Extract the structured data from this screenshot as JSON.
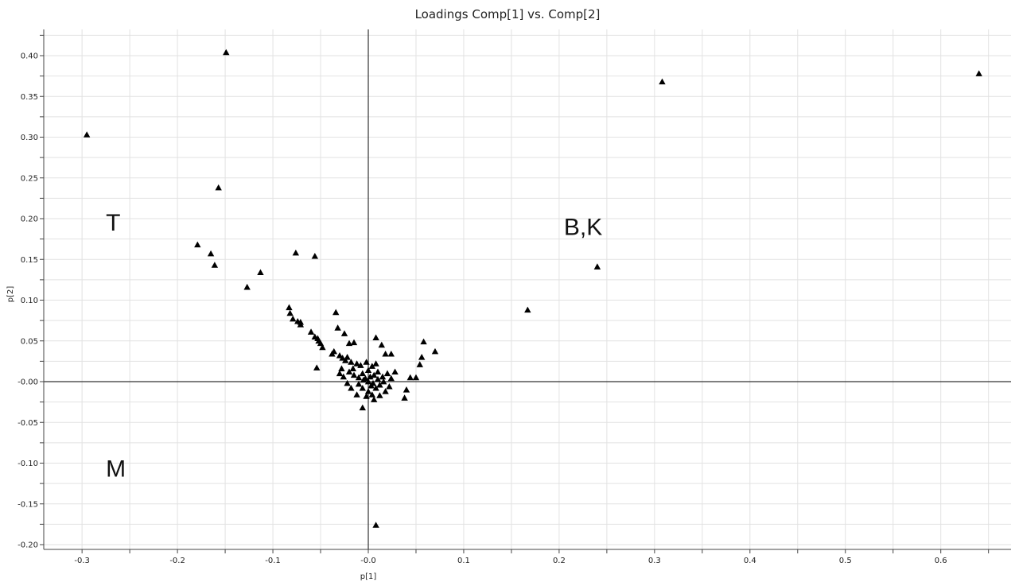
{
  "chart_data": {
    "type": "scatter",
    "title": "Loadings Comp[1] vs. Comp[2]",
    "xlabel": "p[1]",
    "ylabel": "p[2]",
    "xlim": [
      -0.34,
      0.68
    ],
    "ylim": [
      -0.205,
      0.425
    ],
    "grid": true,
    "marker": "triangle",
    "marker_color": "#000000",
    "x_ticks": [
      {
        "value": -0.3,
        "label": "-0.3"
      },
      {
        "value": -0.2,
        "label": "-0.2"
      },
      {
        "value": -0.1,
        "label": "-0.1"
      },
      {
        "value": 0.0,
        "label": "-0.0"
      },
      {
        "value": 0.1,
        "label": "0.1"
      },
      {
        "value": 0.2,
        "label": "0.2"
      },
      {
        "value": 0.3,
        "label": "0.3"
      },
      {
        "value": 0.4,
        "label": "0.4"
      },
      {
        "value": 0.5,
        "label": "0.5"
      },
      {
        "value": 0.6,
        "label": "0.6"
      }
    ],
    "y_ticks": [
      {
        "value": 0.4,
        "label": "0.40"
      },
      {
        "value": 0.35,
        "label": "0.35"
      },
      {
        "value": 0.3,
        "label": "0.30"
      },
      {
        "value": 0.25,
        "label": "0.25"
      },
      {
        "value": 0.2,
        "label": "0.20"
      },
      {
        "value": 0.15,
        "label": "0.15"
      },
      {
        "value": 0.1,
        "label": "0.10"
      },
      {
        "value": 0.05,
        "label": "0.05"
      },
      {
        "value": 0.0,
        "label": "-0.00"
      },
      {
        "value": -0.05,
        "label": "-0.05"
      },
      {
        "value": -0.1,
        "label": "-0.10"
      },
      {
        "value": -0.15,
        "label": "-0.15"
      },
      {
        "value": -0.2,
        "label": "-0.20"
      }
    ],
    "annotations": [
      {
        "text": "T",
        "x": -0.275,
        "y": 0.195
      },
      {
        "text": "B,K",
        "x": 0.205,
        "y": 0.19
      },
      {
        "text": "M",
        "x": -0.275,
        "y": -0.107
      }
    ],
    "points": [
      [
        -0.149,
        0.404
      ],
      [
        -0.295,
        0.303
      ],
      [
        0.308,
        0.368
      ],
      [
        0.64,
        0.378
      ],
      [
        -0.157,
        0.238
      ],
      [
        -0.179,
        0.168
      ],
      [
        -0.165,
        0.157
      ],
      [
        -0.161,
        0.143
      ],
      [
        -0.076,
        0.158
      ],
      [
        -0.056,
        0.154
      ],
      [
        -0.113,
        0.134
      ],
      [
        -0.127,
        0.116
      ],
      [
        0.24,
        0.141
      ],
      [
        0.167,
        0.088
      ],
      [
        -0.083,
        0.091
      ],
      [
        -0.082,
        0.084
      ],
      [
        -0.079,
        0.077
      ],
      [
        -0.074,
        0.074
      ],
      [
        -0.071,
        0.073
      ],
      [
        -0.071,
        0.07
      ],
      [
        -0.06,
        0.061
      ],
      [
        -0.056,
        0.055
      ],
      [
        -0.053,
        0.053
      ],
      [
        -0.052,
        0.05
      ],
      [
        -0.05,
        0.047
      ],
      [
        -0.048,
        0.042
      ],
      [
        -0.034,
        0.085
      ],
      [
        -0.032,
        0.066
      ],
      [
        -0.025,
        0.059
      ],
      [
        -0.02,
        0.047
      ],
      [
        -0.015,
        0.048
      ],
      [
        -0.036,
        0.037
      ],
      [
        -0.038,
        0.034
      ],
      [
        -0.03,
        0.032
      ],
      [
        -0.027,
        0.029
      ],
      [
        -0.024,
        0.026
      ],
      [
        -0.022,
        0.03
      ],
      [
        -0.054,
        0.017
      ],
      [
        -0.028,
        0.016
      ],
      [
        -0.018,
        0.024
      ],
      [
        -0.012,
        0.022
      ],
      [
        -0.008,
        0.02
      ],
      [
        -0.002,
        0.024
      ],
      [
        0.004,
        0.019
      ],
      [
        0.008,
        0.022
      ],
      [
        0.008,
        0.054
      ],
      [
        0.014,
        0.045
      ],
      [
        0.018,
        0.034
      ],
      [
        0.024,
        0.034
      ],
      [
        0.058,
        0.049
      ],
      [
        0.07,
        0.037
      ],
      [
        0.056,
        0.03
      ],
      [
        0.054,
        0.021
      ],
      [
        0.044,
        0.005
      ],
      [
        0.05,
        0.005
      ],
      [
        0.04,
        -0.01
      ],
      [
        0.038,
        -0.02
      ],
      [
        0.022,
        -0.006
      ],
      [
        0.018,
        -0.012
      ],
      [
        0.012,
        -0.017
      ],
      [
        0.006,
        -0.022
      ],
      [
        -0.006,
        -0.032
      ],
      [
        -0.012,
        -0.016
      ],
      [
        -0.018,
        -0.008
      ],
      [
        -0.022,
        -0.002
      ],
      [
        -0.026,
        0.006
      ],
      [
        -0.03,
        0.01
      ],
      [
        -0.02,
        0.012
      ],
      [
        -0.015,
        0.008
      ],
      [
        -0.01,
        0.005
      ],
      [
        -0.005,
        0.002
      ],
      [
        0.0,
        0.0
      ],
      [
        0.005,
        -0.002
      ],
      [
        0.01,
        0.003
      ],
      [
        0.015,
        0.006
      ],
      [
        0.02,
        0.01
      ],
      [
        0.01,
        0.012
      ],
      [
        0.0,
        0.014
      ],
      [
        -0.006,
        0.01
      ],
      [
        -0.01,
        -0.003
      ],
      [
        -0.006,
        -0.008
      ],
      [
        0.0,
        -0.012
      ],
      [
        0.004,
        -0.016
      ],
      [
        0.008,
        -0.008
      ],
      [
        0.012,
        -0.004
      ],
      [
        0.016,
        0.0
      ],
      [
        0.002,
        0.006
      ],
      [
        -0.003,
        0.004
      ],
      [
        0.003,
        -0.005
      ],
      [
        -0.002,
        -0.018
      ],
      [
        0.006,
        0.008
      ],
      [
        0.024,
        0.004
      ],
      [
        0.028,
        0.012
      ],
      [
        -0.016,
        0.016
      ],
      [
        0.008,
        -0.176
      ]
    ]
  }
}
